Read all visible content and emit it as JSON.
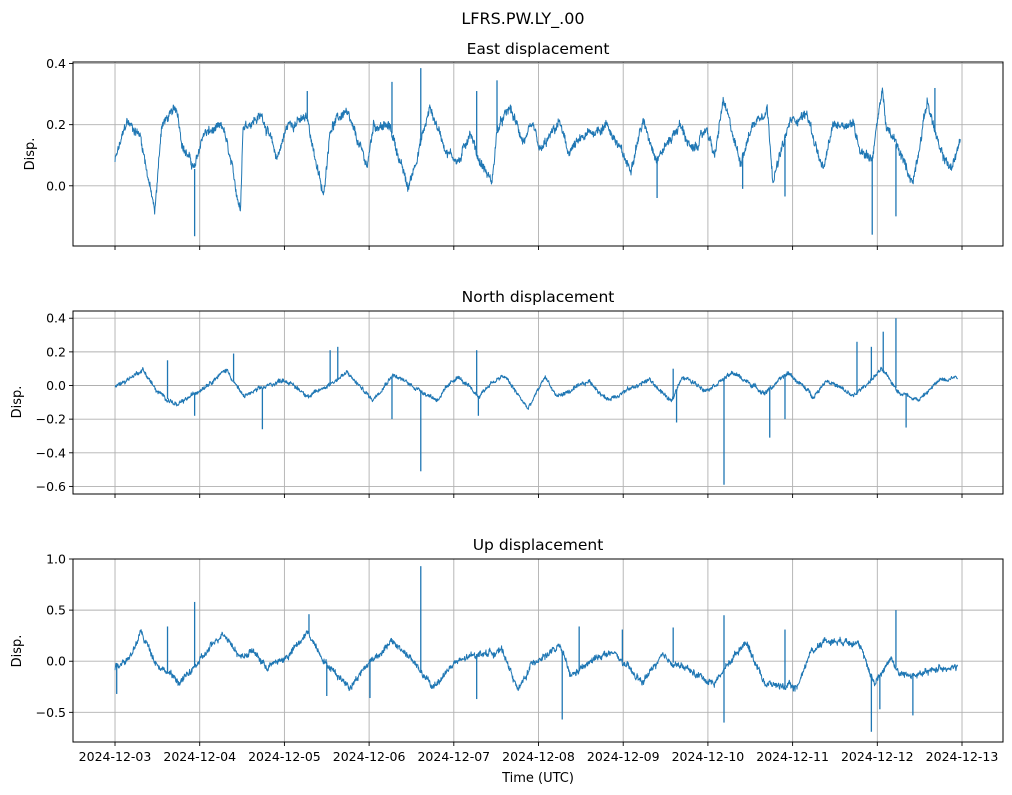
{
  "chart_data": {
    "type": "line",
    "suptitle": "LFRS.PW.LY_.00",
    "xlabel": "Time (UTC)",
    "x_unit": "days since 2024-12-03 00:00 UTC",
    "xlim": [
      -0.496,
      10.484
    ],
    "x_ticks": [
      0,
      1,
      2,
      3,
      4,
      5,
      6,
      7,
      8,
      9,
      10
    ],
    "x_tick_labels": [
      "2024-12-03",
      "2024-12-04",
      "2024-12-05",
      "2024-12-06",
      "2024-12-07",
      "2024-12-08",
      "2024-12-09",
      "2024-12-10",
      "2024-12-11",
      "2024-12-12",
      "2024-12-13"
    ],
    "grid": true,
    "line_color": "#1f77b4",
    "panels": [
      {
        "title": "East displacement",
        "ylabel": "Disp.",
        "ylim": [
          -0.197,
          0.405
        ],
        "y_ticks": [
          0.0,
          0.2,
          0.4
        ],
        "y_tick_labels": [
          "0.0",
          "0.2",
          "0.4"
        ],
        "show_x_tick_labels": false,
        "noise": 0.022,
        "series": {
          "name": "East",
          "x": [
            0,
            0.14,
            0.3,
            0.47,
            0.55,
            0.73,
            0.8,
            0.94,
            1.04,
            1.28,
            1.48,
            1.51,
            1.74,
            1.91,
            2.04,
            2.27,
            2.46,
            2.54,
            2.72,
            2.98,
            3.05,
            3.25,
            3.46,
            3.72,
            3.92,
            4.07,
            4.19,
            4.29,
            4.45,
            4.51,
            4.66,
            4.82,
            4.94,
            5.02,
            5.25,
            5.34,
            5.57,
            5.81,
            6.08,
            6.23,
            6.4,
            6.67,
            6.82,
            6.99,
            7.08,
            7.18,
            7.38,
            7.53,
            7.7,
            7.77,
            7.97,
            8.17,
            8.36,
            8.48,
            8.71,
            8.8,
            8.94,
            9.06,
            9.11,
            9.19,
            9.42,
            9.59,
            9.74,
            9.88,
            9.98
          ],
          "y": [
            0.08,
            0.21,
            0.165,
            -0.09,
            0.2,
            0.255,
            0.13,
            0.055,
            0.17,
            0.19,
            -0.08,
            0.195,
            0.23,
            0.09,
            0.2,
            0.22,
            -0.04,
            0.19,
            0.245,
            0.065,
            0.2,
            0.19,
            -0.01,
            0.255,
            0.11,
            0.08,
            0.18,
            0.09,
            0.01,
            0.18,
            0.255,
            0.145,
            0.19,
            0.11,
            0.21,
            0.11,
            0.165,
            0.2,
            0.055,
            0.21,
            0.09,
            0.2,
            0.11,
            0.19,
            0.09,
            0.28,
            0.08,
            0.2,
            0.255,
            0.02,
            0.21,
            0.235,
            0.045,
            0.2,
            0.205,
            0.12,
            0.09,
            0.32,
            0.18,
            0.155,
            0.01,
            0.28,
            0.11,
            0.055,
            0.155
          ]
        },
        "spikes": {
          "x": [
            0.94,
            2.27,
            3.27,
            3.61,
            4.27,
            4.51,
            6.4,
            7.41,
            7.91,
            8.94,
            9.22,
            9.68
          ],
          "y": [
            -0.165,
            0.31,
            0.34,
            0.385,
            0.31,
            0.345,
            -0.04,
            -0.01,
            -0.035,
            -0.16,
            -0.1,
            0.32
          ]
        }
      },
      {
        "title": "North displacement",
        "ylabel": "Disp.",
        "ylim": [
          -0.645,
          0.443
        ],
        "y_ticks": [
          -0.6,
          -0.4,
          -0.2,
          0.0,
          0.2,
          0.4
        ],
        "y_tick_labels": [
          "−0.6",
          "−0.4",
          "−0.2",
          "0.0",
          "0.2",
          "0.4"
        ],
        "show_x_tick_labels": false,
        "noise": 0.018,
        "series": {
          "name": "North",
          "x": [
            0,
            0.33,
            0.5,
            0.74,
            1.0,
            1.32,
            1.51,
            1.98,
            2.0,
            2.3,
            2.74,
            2.74,
            3.04,
            3.28,
            3.8,
            3.8,
            4.04,
            4.29,
            4.44,
            4.6,
            4.88,
            5.08,
            5.21,
            5.37,
            5.6,
            5.81,
            6.31,
            6.57,
            6.69,
            6.98,
            7.3,
            7.67,
            7.95,
            8.25,
            8.4,
            8.72,
            9.05,
            9.26,
            9.5,
            9.74,
            9.95
          ],
          "y": [
            -0.01,
            0.095,
            -0.04,
            -0.12,
            -0.025,
            0.095,
            -0.065,
            0.035,
            0.035,
            -0.065,
            0.075,
            0.075,
            -0.085,
            0.065,
            -0.085,
            -0.085,
            0.055,
            -0.065,
            0.015,
            0.055,
            -0.14,
            0.055,
            -0.065,
            -0.035,
            0.025,
            -0.085,
            0.035,
            -0.1,
            0.055,
            -0.025,
            0.075,
            -0.045,
            0.075,
            -0.065,
            0.035,
            -0.065,
            0.095,
            -0.04,
            -0.085,
            0.035,
            0.055
          ]
        },
        "spikes": {
          "x": [
            0.62,
            0.94,
            1.4,
            1.74,
            2.54,
            2.63,
            3.27,
            3.61,
            4.27,
            4.29,
            6.59,
            6.63,
            7.19,
            7.73,
            7.91,
            8.76,
            8.93,
            9.07,
            9.22,
            9.34
          ],
          "y": [
            0.15,
            -0.18,
            0.19,
            -0.26,
            0.21,
            0.23,
            -0.2,
            -0.51,
            0.21,
            -0.18,
            0.1,
            -0.22,
            -0.59,
            -0.31,
            -0.2,
            0.26,
            0.23,
            0.32,
            0.4,
            -0.25
          ]
        }
      },
      {
        "title": "Up displacement",
        "ylabel": "Disp.",
        "ylim": [
          -0.79,
          1.0
        ],
        "y_ticks": [
          -0.5,
          0.0,
          0.5,
          1.0
        ],
        "y_tick_labels": [
          "−0.5",
          "0.0",
          "0.5",
          "1.0"
        ],
        "show_x_tick_labels": true,
        "noise": 0.045,
        "series": {
          "name": "Up",
          "x": [
            0,
            0.21,
            0.3,
            0.5,
            0.77,
            1.0,
            1.28,
            1.48,
            1.63,
            1.79,
            2.03,
            2.28,
            2.5,
            2.77,
            3.01,
            3.28,
            3.48,
            3.75,
            3.99,
            4.27,
            4.58,
            4.76,
            4.94,
            5.11,
            5.26,
            5.38,
            5.75,
            5.9,
            6.22,
            6.45,
            6.71,
            7.07,
            7.44,
            7.68,
            8.05,
            8.2,
            8.36,
            8.76,
            8.97,
            9.16,
            9.26,
            9.53,
            9.74,
            9.95
          ],
          "y": [
            -0.06,
            0.07,
            0.29,
            -0.03,
            -0.21,
            0.0,
            0.29,
            0.04,
            0.1,
            -0.06,
            0.04,
            0.28,
            -0.03,
            -0.25,
            0.0,
            0.19,
            0.04,
            -0.26,
            -0.03,
            0.07,
            0.1,
            -0.29,
            0.0,
            0.07,
            0.14,
            -0.15,
            0.07,
            0.07,
            -0.21,
            0.04,
            -0.06,
            -0.22,
            0.2,
            -0.22,
            -0.26,
            0.07,
            0.2,
            0.2,
            -0.22,
            0.04,
            -0.13,
            -0.13,
            -0.06,
            -0.06
          ]
        },
        "spikes": {
          "x": [
            0.02,
            0.62,
            0.94,
            2.29,
            2.5,
            3.01,
            3.61,
            4.27,
            5.28,
            5.48,
            5.99,
            6.59,
            7.19,
            7.19,
            7.91,
            8.93,
            9.03,
            9.22,
            9.42
          ],
          "y": [
            -0.32,
            0.34,
            0.58,
            0.46,
            -0.34,
            -0.36,
            0.93,
            -0.37,
            -0.57,
            0.34,
            0.31,
            0.33,
            0.45,
            -0.6,
            0.31,
            -0.69,
            -0.47,
            0.5,
            -0.53
          ]
        }
      }
    ]
  }
}
